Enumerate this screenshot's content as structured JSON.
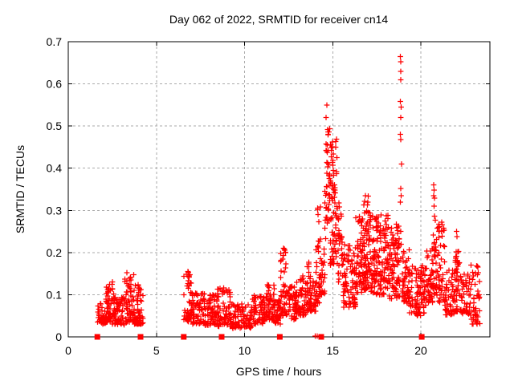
{
  "chart_data": {
    "type": "scatter",
    "title": "Day 062 of 2022, SRMTID for receiver cn14",
    "xlabel": "GPS time / hours",
    "ylabel": "SRMTID / TECUs",
    "xlim": [
      0,
      23.9
    ],
    "ylim": [
      0,
      0.7
    ],
    "xticks": {
      "values": [
        0,
        5,
        10,
        15,
        20
      ],
      "labels": [
        "0",
        "5",
        "10",
        "15",
        "20"
      ]
    },
    "yticks": {
      "values": [
        0,
        0.1,
        0.2,
        0.3,
        0.4,
        0.5,
        0.6,
        0.7
      ],
      "labels": [
        "0",
        "0.1",
        "0.2",
        "0.3",
        "0.4",
        "0.5",
        "0.6",
        "0.7"
      ]
    },
    "grid": true,
    "legend": "none",
    "marker": {
      "shape": "plus",
      "color": "#ff0000",
      "size": 7
    },
    "colors": {
      "marker": "#ff0000",
      "grid": "#aaaaaa",
      "axis": "#000000",
      "background": "#ffffff"
    },
    "series_name": "SRMTID for receiver cn14",
    "notable_points": {
      "maximum": {
        "t": 18.85,
        "y": 0.665
      },
      "spike_15h_max": {
        "t": 14.68,
        "y": 0.55
      },
      "spike_20.8h_max": {
        "t": 20.73,
        "y": 0.36
      }
    },
    "clusters": [
      [
        1.65,
        2.1,
        40,
        0.03,
        0.085,
        1.3
      ],
      [
        2.1,
        2.6,
        55,
        0.03,
        0.125,
        1.6
      ],
      [
        2.6,
        3.2,
        55,
        0.028,
        0.095,
        1.4
      ],
      [
        3.2,
        3.75,
        60,
        0.035,
        0.15,
        1.7
      ],
      [
        3.75,
        4.25,
        55,
        0.03,
        0.125,
        1.6
      ],
      [
        6.55,
        7.0,
        45,
        0.035,
        0.155,
        1.6
      ],
      [
        7.0,
        7.75,
        70,
        0.03,
        0.105,
        1.4
      ],
      [
        7.75,
        8.45,
        65,
        0.028,
        0.105,
        1.4
      ],
      [
        8.45,
        9.25,
        70,
        0.025,
        0.12,
        1.5
      ],
      [
        9.25,
        10.4,
        90,
        0.02,
        0.08,
        1.3
      ],
      [
        10.4,
        11.15,
        65,
        0.03,
        0.1,
        1.4
      ],
      [
        11.15,
        11.7,
        55,
        0.04,
        0.125,
        1.5
      ],
      [
        11.7,
        12.05,
        40,
        0.03,
        0.09,
        1.3
      ],
      [
        12.05,
        12.35,
        40,
        0.05,
        0.21,
        1.7
      ],
      [
        12.35,
        12.95,
        55,
        0.04,
        0.12,
        1.4
      ],
      [
        12.95,
        13.55,
        55,
        0.05,
        0.145,
        1.4
      ],
      [
        13.55,
        14.05,
        55,
        0.06,
        0.18,
        1.5
      ],
      [
        14.05,
        14.3,
        35,
        0.08,
        0.31,
        1.8
      ],
      [
        14.3,
        14.55,
        25,
        0.1,
        0.21,
        1.3
      ],
      [
        14.55,
        14.85,
        45,
        0.22,
        0.5,
        1.0
      ],
      [
        14.85,
        15.25,
        75,
        0.17,
        0.47,
        1.1
      ],
      [
        15.25,
        15.55,
        30,
        0.13,
        0.33,
        1.2
      ],
      [
        15.55,
        16.3,
        85,
        0.07,
        0.22,
        1.4
      ],
      [
        16.3,
        16.75,
        65,
        0.1,
        0.29,
        1.3
      ],
      [
        16.75,
        17.05,
        60,
        0.11,
        0.34,
        1.3
      ],
      [
        17.05,
        17.55,
        75,
        0.1,
        0.31,
        1.3
      ],
      [
        17.55,
        18.15,
        85,
        0.1,
        0.29,
        1.3
      ],
      [
        18.15,
        18.8,
        90,
        0.09,
        0.27,
        1.3
      ],
      [
        18.95,
        19.35,
        50,
        0.08,
        0.21,
        1.3
      ],
      [
        19.35,
        20.3,
        95,
        0.05,
        0.17,
        1.3
      ],
      [
        20.3,
        20.7,
        45,
        0.08,
        0.21,
        1.4
      ],
      [
        20.7,
        20.9,
        25,
        0.1,
        0.28,
        1.2
      ],
      [
        20.9,
        21.35,
        50,
        0.08,
        0.275,
        1.2
      ],
      [
        21.35,
        21.95,
        55,
        0.05,
        0.16,
        1.3
      ],
      [
        21.95,
        22.25,
        40,
        0.06,
        0.22,
        1.5
      ],
      [
        22.25,
        22.85,
        45,
        0.05,
        0.15,
        1.3
      ],
      [
        22.85,
        23.35,
        45,
        0.03,
        0.17,
        1.4
      ]
    ],
    "peaks": [
      [
        2.5,
        0.13
      ],
      [
        3.32,
        0.152
      ],
      [
        6.78,
        0.155
      ],
      [
        12.2,
        0.21
      ],
      [
        14.14,
        0.305
      ],
      [
        14.17,
        0.29
      ],
      [
        14.63,
        0.52
      ],
      [
        14.68,
        0.55
      ],
      [
        16.85,
        0.335
      ],
      [
        18.84,
        0.665
      ],
      [
        18.87,
        0.652
      ],
      [
        18.85,
        0.63
      ],
      [
        18.86,
        0.61
      ],
      [
        18.84,
        0.558
      ],
      [
        18.88,
        0.545
      ],
      [
        18.86,
        0.52
      ],
      [
        18.83,
        0.48
      ],
      [
        18.87,
        0.468
      ],
      [
        18.9,
        0.41
      ],
      [
        18.85,
        0.352
      ],
      [
        18.88,
        0.335
      ],
      [
        18.83,
        0.32
      ],
      [
        18.86,
        0.25
      ],
      [
        18.89,
        0.22
      ],
      [
        18.85,
        0.185
      ],
      [
        20.73,
        0.36
      ],
      [
        20.76,
        0.348
      ],
      [
        20.74,
        0.335
      ],
      [
        20.78,
        0.329
      ],
      [
        20.75,
        0.31
      ],
      [
        20.77,
        0.286
      ],
      [
        22.03,
        0.25
      ],
      [
        22.06,
        0.238
      ]
    ],
    "baseline_squares": [
      1.65,
      4.1,
      6.55,
      8.7,
      12.0,
      14.35,
      20.05
    ],
    "baseline_pluses": [
      14.0,
      14.12
    ]
  }
}
